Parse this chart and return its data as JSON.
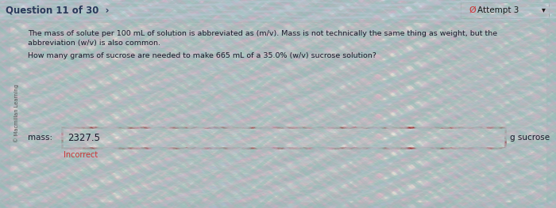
{
  "bg_color_top": "#c8d8d8",
  "bg_color": "#ccc8c0",
  "header_text": "Question 11 of 30  ›",
  "attempt_text": "Ø Attempt 3",
  "attempt_symbol_color": "#cc3333",
  "copyright_text": "© Macmillan Learning",
  "body_text_line1": "The mass of solute per 100 mL of solution is abbreviated as (m/v). Mass is not technically the same thing as weight, but the",
  "body_text_line2": "abbreviation (w/v) is also common.",
  "body_text_line3": "How many grams of sucrose are needed to make 665 mL of a 35.0% (w/v) sucrose solution?",
  "mass_label": "mass:",
  "input_value": "2327.5",
  "input_box_border": "#993333",
  "input_bg": "#e8e4dc",
  "unit_text": "g sucrose",
  "incorrect_text": "Incorrect",
  "incorrect_color": "#cc3333",
  "outer_box_bg": "#dedad2",
  "header_bg": "#dcdfe8",
  "font_color": "#1a1a1a",
  "attempt_box_bg": "#e8e4e0",
  "attempt_box_border": "#999999",
  "wave_colors": [
    "#b8c8d0",
    "#c0b8c8",
    "#c8d4cc",
    "#b0c0cc",
    "#c4bcc8"
  ],
  "header_font_color": "#2a3a5a",
  "text_color": "#1a1a2a"
}
